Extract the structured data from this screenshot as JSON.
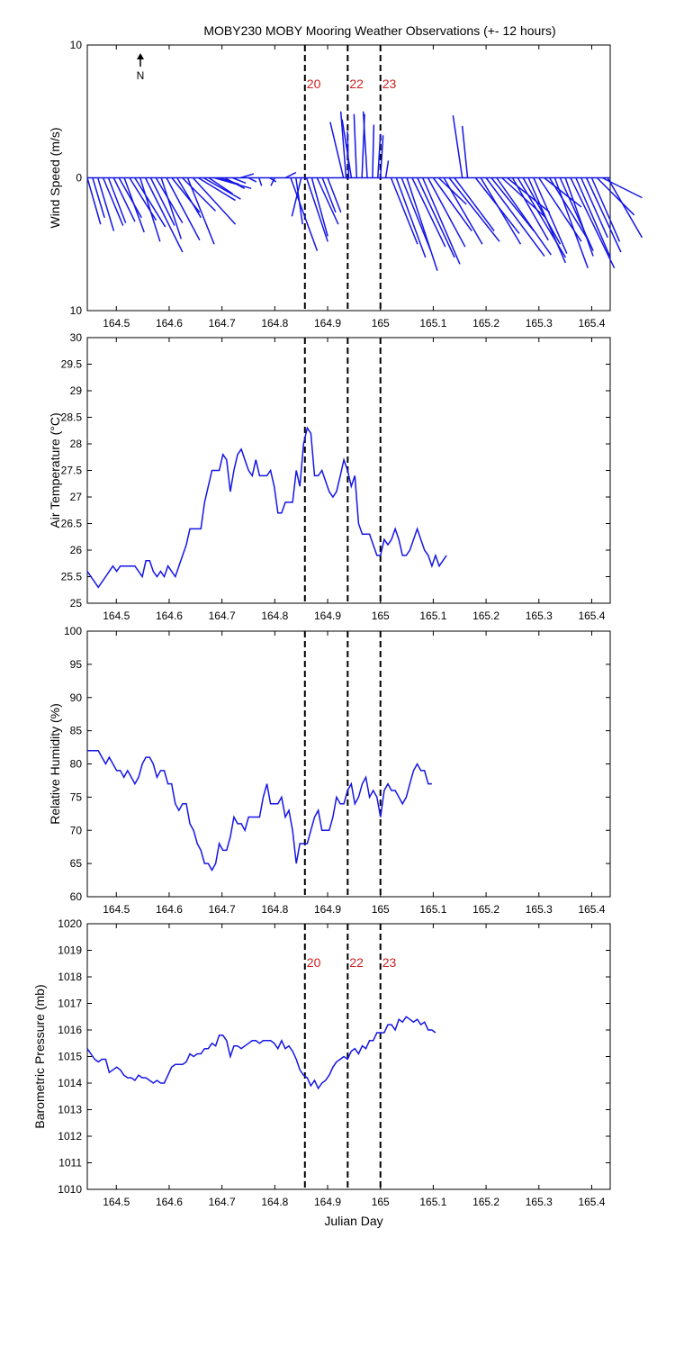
{
  "title": "MOBY230 MOBY Mooring Weather Observations (+- 12 hours)",
  "xlabel": "Julian Day",
  "north_label": "N",
  "colors": {
    "series": "#1515e6",
    "event_line": "#000000",
    "event_label": "#cc2222",
    "axes": "#000000"
  },
  "events": [
    {
      "label": "20",
      "x": 164.857
    },
    {
      "label": "22",
      "x": 164.938
    },
    {
      "label": "23",
      "x": 165.0
    }
  ],
  "chart_data": [
    {
      "type": "quiver",
      "ylabel": "Wind Speed (m/s)",
      "xlim": [
        164.445,
        165.435
      ],
      "ylim": [
        -10,
        10
      ],
      "ytick_labels": [
        "10",
        "0",
        "10"
      ],
      "xticks": [
        164.5,
        164.6,
        164.7,
        164.8,
        164.9,
        165,
        165.1,
        165.2,
        165.3,
        165.4
      ],
      "show_event_labels": true,
      "series": [
        {
          "name": "",
          "x": [],
          "u": [],
          "v": []
        }
      ]
    },
    {
      "type": "line",
      "ylabel": "Air Temperature (°C)",
      "xlim": [
        164.445,
        165.435
      ],
      "ylim": [
        25,
        30
      ],
      "yticks": [
        25,
        25.5,
        26,
        26.5,
        27,
        27.5,
        28,
        28.5,
        29,
        29.5,
        30
      ],
      "xticks": [
        164.5,
        164.6,
        164.7,
        164.8,
        164.9,
        165,
        165.1,
        165.2,
        165.3,
        165.4
      ],
      "show_event_labels": false,
      "series": [
        {
          "name": "",
          "x": [],
          "y": []
        }
      ]
    },
    {
      "type": "line",
      "ylabel": "Relative Humidity (%)",
      "xlim": [
        164.445,
        165.435
      ],
      "ylim": [
        60,
        100
      ],
      "yticks": [
        60,
        65,
        70,
        75,
        80,
        85,
        90,
        95,
        100
      ],
      "xticks": [
        164.5,
        164.6,
        164.7,
        164.8,
        164.9,
        165,
        165.1,
        165.2,
        165.3,
        165.4
      ],
      "show_event_labels": false,
      "series": [
        {
          "name": "",
          "x": [],
          "y": []
        }
      ]
    },
    {
      "type": "line",
      "ylabel": "Barometric Pressure (mb)",
      "xlabel": "Julian Day",
      "xlim": [
        164.445,
        165.435
      ],
      "ylim": [
        1010,
        1020
      ],
      "yticks": [
        1010,
        1011,
        1012,
        1013,
        1014,
        1015,
        1016,
        1017,
        1018,
        1019,
        1020
      ],
      "xticks": [
        164.5,
        164.6,
        164.7,
        164.8,
        164.9,
        165,
        165.1,
        165.2,
        165.3,
        165.4
      ],
      "show_event_labels": true,
      "series": [
        {
          "name": "",
          "x": [],
          "y": []
        }
      ]
    }
  ]
}
